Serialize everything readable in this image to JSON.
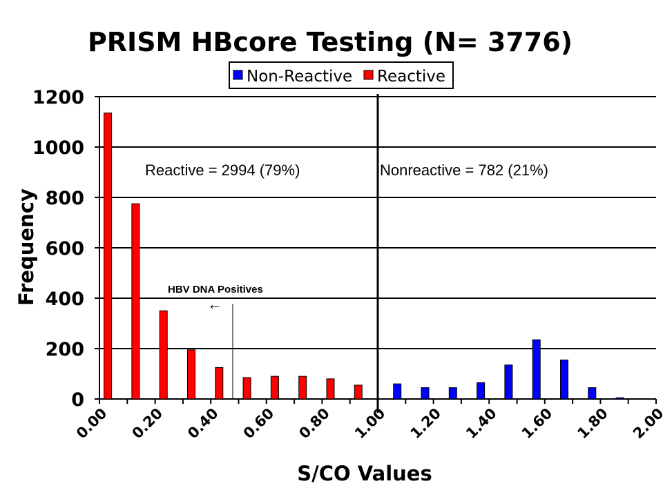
{
  "chart_data": {
    "type": "bar",
    "title": "PRISM HBcore Testing (N= 3776)",
    "xlabel": "S/CO Values",
    "ylabel": "Frequency",
    "ylim": [
      0,
      1200
    ],
    "yticks": [
      "0",
      "200",
      "400",
      "600",
      "800",
      "1000",
      "1200"
    ],
    "xlim": [
      0,
      2.0
    ],
    "xticks": [
      "0.00",
      "0.20",
      "0.40",
      "0.60",
      "0.80",
      "1.00",
      "1.20",
      "1.40",
      "1.60",
      "1.80",
      "2.00"
    ],
    "grid": true,
    "legend_position": "top-center",
    "cutoff_x": 1.0,
    "series": [
      {
        "name": "Non-Reactive",
        "color": "#0000FF",
        "x": [
          1.07,
          1.17,
          1.27,
          1.37,
          1.47,
          1.57,
          1.67,
          1.77,
          1.87
        ],
        "values": [
          60,
          45,
          45,
          65,
          135,
          235,
          155,
          45,
          5
        ]
      },
      {
        "name": "Reactive",
        "color": "#FF0000",
        "x": [
          0.03,
          0.13,
          0.23,
          0.33,
          0.43,
          0.53,
          0.63,
          0.73,
          0.83,
          0.93
        ],
        "values": [
          1135,
          775,
          350,
          195,
          125,
          85,
          90,
          90,
          80,
          55
        ]
      }
    ],
    "annotations": {
      "reactive": "Reactive = 2994 (79%)",
      "nonreactive": "Nonreactive = 782 (21%)",
      "hbv": "HBV DNA Positives",
      "arrow_glyph": "←"
    }
  }
}
